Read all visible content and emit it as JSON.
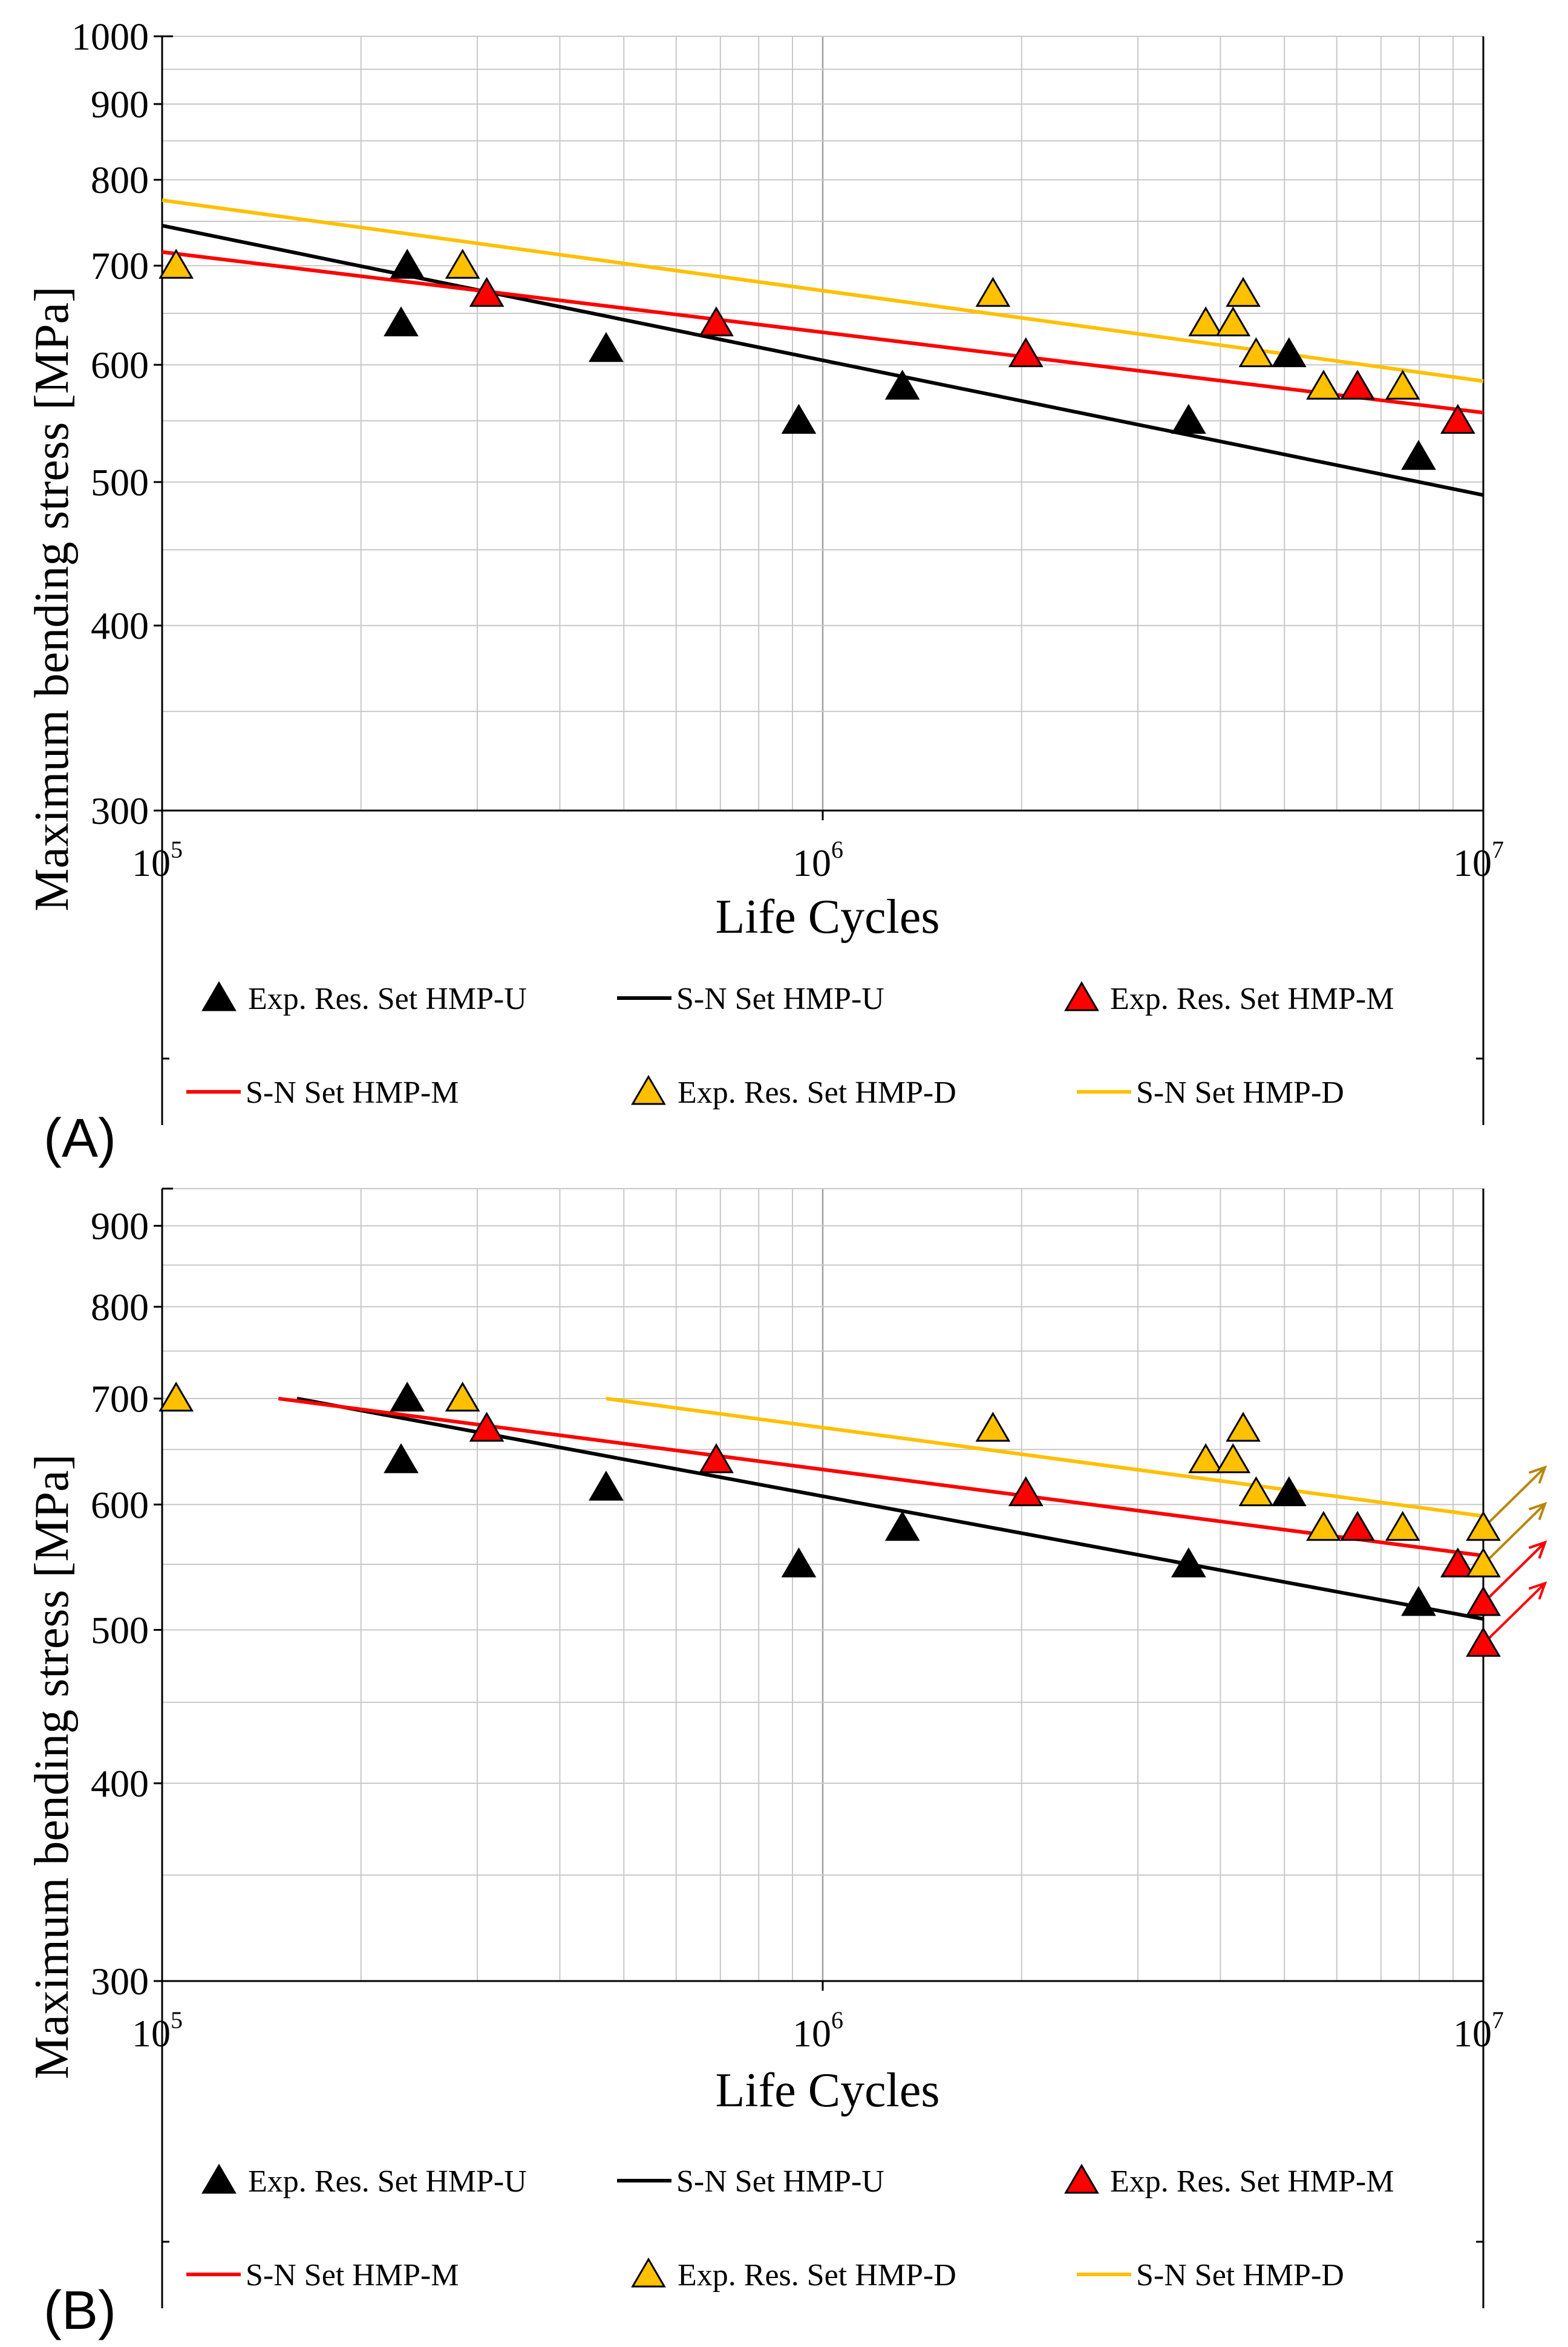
{
  "chart_data": [
    {
      "panel_label": "(A)",
      "type": "scatter",
      "xscale": "log",
      "yscale": "log",
      "xlim": [
        100000,
        10000000
      ],
      "ylim": [
        300,
        1000
      ],
      "xlabel": "Life Cycles",
      "ylabel": "Maximum bending stress [MPa]",
      "x_ticks": [
        {
          "base": "10",
          "exp": "5",
          "value": 100000
        },
        {
          "base": "10",
          "exp": "6",
          "value": 1000000
        },
        {
          "base": "10",
          "exp": "7",
          "value": 10000000
        }
      ],
      "y_ticks": [
        {
          "label": "300",
          "value": 300
        },
        {
          "label": "400",
          "value": 400
        },
        {
          "label": "500",
          "value": 500
        },
        {
          "label": "600",
          "value": 600
        },
        {
          "label": "700",
          "value": 700
        },
        {
          "label": "800",
          "value": 800
        },
        {
          "label": "900",
          "value": 900
        },
        {
          "label": "1000",
          "value": 1000
        }
      ],
      "series": [
        {
          "name": "Exp. Res. Set HMP-U",
          "kind": "points",
          "color": "#000000",
          "x": [
            230000,
            235000,
            470000,
            920000,
            1320000,
            3580000,
            5080000,
            7980000
          ],
          "y": [
            640,
            700,
            615,
            550,
            580,
            550,
            610,
            520
          ]
        },
        {
          "name": "S-N Set HMP-U",
          "kind": "line",
          "color": "#000000",
          "x": [
            100000,
            10000000
          ],
          "y": [
            745,
            490
          ]
        },
        {
          "name": "Exp. Res. Set HMP-M",
          "kind": "points",
          "color": "#ff0000",
          "x": [
            310000,
            690000,
            2030000,
            6450000,
            9150000
          ],
          "y": [
            670,
            640,
            610,
            580,
            550
          ]
        },
        {
          "name": "S-N Set HMP-M",
          "kind": "line",
          "color": "#ff0000",
          "x": [
            100000,
            10000000
          ],
          "y": [
            715,
            557
          ]
        },
        {
          "name": "Exp. Res. Set HMP-D",
          "kind": "points",
          "color": "#ffc000",
          "x": [
            105000,
            285000,
            1810000,
            3800000,
            4180000,
            4330000,
            4530000,
            5730000,
            7550000
          ],
          "y": [
            700,
            700,
            670,
            640,
            640,
            670,
            610,
            580,
            580
          ]
        },
        {
          "name": "S-N Set HMP-D",
          "kind": "line",
          "color": "#ffc000",
          "x": [
            100000,
            10000000
          ],
          "y": [
            775,
            585
          ]
        }
      ],
      "runouts": []
    },
    {
      "panel_label": "(B)",
      "type": "scatter",
      "xscale": "log",
      "yscale": "log",
      "xlim": [
        100000,
        10000000
      ],
      "ylim": [
        300,
        950
      ],
      "xlabel": "Life Cycles",
      "ylabel": "Maximum bending stress [MPa]",
      "x_ticks": [
        {
          "base": "10",
          "exp": "5",
          "value": 100000
        },
        {
          "base": "10",
          "exp": "6",
          "value": 1000000
        },
        {
          "base": "10",
          "exp": "7",
          "value": 10000000
        }
      ],
      "y_ticks": [
        {
          "label": "300",
          "value": 300
        },
        {
          "label": "400",
          "value": 400
        },
        {
          "label": "500",
          "value": 500
        },
        {
          "label": "600",
          "value": 600
        },
        {
          "label": "700",
          "value": 700
        },
        {
          "label": "800",
          "value": 800
        },
        {
          "label": "900",
          "value": 900
        }
      ],
      "series": [
        {
          "name": "Exp. Res. Set HMP-U",
          "kind": "points",
          "color": "#000000",
          "x": [
            230000,
            235000,
            470000,
            920000,
            1320000,
            3580000,
            5080000,
            7980000,
            10000000
          ],
          "y": [
            640,
            700,
            615,
            550,
            580,
            550,
            610,
            520,
            520
          ]
        },
        {
          "name": "S-N Set HMP-U",
          "kind": "line",
          "color": "#000000",
          "x": [
            160000,
            10000000
          ],
          "y": [
            700,
            508
          ]
        },
        {
          "name": "Exp. Res. Set HMP-M",
          "kind": "points",
          "color": "#ff0000",
          "x": [
            310000,
            690000,
            2030000,
            6450000,
            9150000,
            10000000,
            10000000
          ],
          "y": [
            670,
            640,
            610,
            580,
            550,
            520,
            490
          ]
        },
        {
          "name": "S-N Set HMP-M",
          "kind": "line",
          "color": "#ff0000",
          "x": [
            150000,
            10000000
          ],
          "y": [
            700,
            557
          ]
        },
        {
          "name": "Exp. Res. Set HMP-D",
          "kind": "points",
          "color": "#ffc000",
          "x": [
            105000,
            285000,
            1810000,
            3800000,
            4180000,
            4330000,
            4530000,
            5730000,
            7550000,
            10000000,
            10000000
          ],
          "y": [
            700,
            700,
            670,
            640,
            640,
            670,
            610,
            580,
            580,
            580,
            550
          ]
        },
        {
          "name": "S-N Set HMP-D",
          "kind": "line",
          "color": "#ffc000",
          "x": [
            470000,
            10000000
          ],
          "y": [
            700,
            590
          ]
        }
      ],
      "runouts": [
        {
          "x": 10000000,
          "y": 580,
          "color": "#b8860b"
        },
        {
          "x": 10000000,
          "y": 550,
          "color": "#b8860b"
        },
        {
          "x": 10000000,
          "y": 520,
          "color": "#000000"
        },
        {
          "x": 10000000,
          "y": 520,
          "color": "#ff0000"
        },
        {
          "x": 10000000,
          "y": 490,
          "color": "#ff0000"
        }
      ]
    }
  ]
}
